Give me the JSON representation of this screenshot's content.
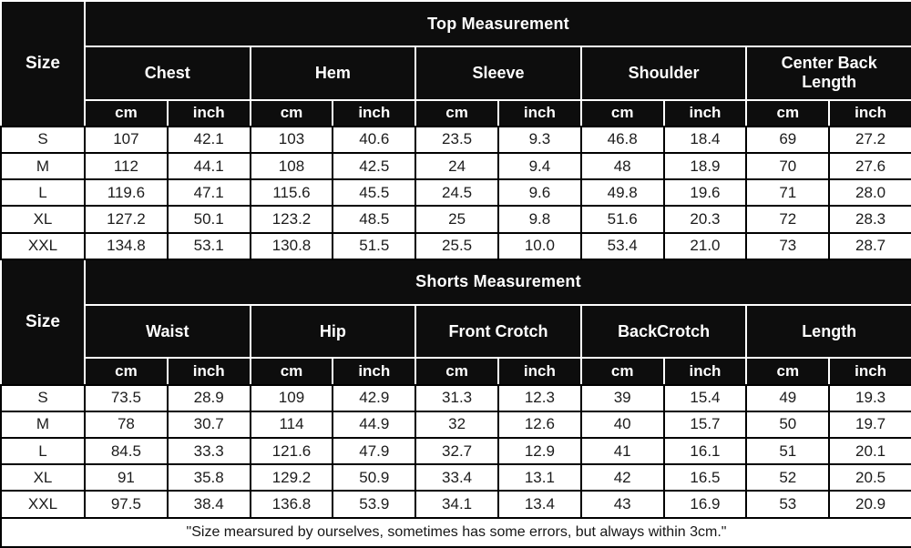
{
  "labels": {
    "size": "Size",
    "cm": "cm",
    "inch": "inch"
  },
  "chart_data": [
    {
      "type": "table",
      "title": "Top Measurement",
      "categories": [
        "Chest",
        "Hem",
        "Sleeve",
        "Shoulder",
        "Center Back Length"
      ],
      "units_per_category": [
        "cm",
        "inch"
      ],
      "row_labels": [
        "S",
        "M",
        "L",
        "XL",
        "XXL"
      ],
      "rows": [
        [
          "107",
          "42.1",
          "103",
          "40.6",
          "23.5",
          "9.3",
          "46.8",
          "18.4",
          "69",
          "27.2"
        ],
        [
          "112",
          "44.1",
          "108",
          "42.5",
          "24",
          "9.4",
          "48",
          "18.9",
          "70",
          "27.6"
        ],
        [
          "119.6",
          "47.1",
          "115.6",
          "45.5",
          "24.5",
          "9.6",
          "49.8",
          "19.6",
          "71",
          "28.0"
        ],
        [
          "127.2",
          "50.1",
          "123.2",
          "48.5",
          "25",
          "9.8",
          "51.6",
          "20.3",
          "72",
          "28.3"
        ],
        [
          "134.8",
          "53.1",
          "130.8",
          "51.5",
          "25.5",
          "10.0",
          "53.4",
          "21.0",
          "73",
          "28.7"
        ]
      ]
    },
    {
      "type": "table",
      "title": "Shorts Measurement",
      "categories": [
        "Waist",
        "Hip",
        "Front Crotch",
        "BackCrotch",
        "Length"
      ],
      "units_per_category": [
        "cm",
        "inch"
      ],
      "row_labels": [
        "S",
        "M",
        "L",
        "XL",
        "XXL"
      ],
      "rows": [
        [
          "73.5",
          "28.9",
          "109",
          "42.9",
          "31.3",
          "12.3",
          "39",
          "15.4",
          "49",
          "19.3"
        ],
        [
          "78",
          "30.7",
          "114",
          "44.9",
          "32",
          "12.6",
          "40",
          "15.7",
          "50",
          "19.7"
        ],
        [
          "84.5",
          "33.3",
          "121.6",
          "47.9",
          "32.7",
          "12.9",
          "41",
          "16.1",
          "51",
          "20.1"
        ],
        [
          "91",
          "35.8",
          "129.2",
          "50.9",
          "33.4",
          "13.1",
          "42",
          "16.5",
          "52",
          "20.5"
        ],
        [
          "97.5",
          "38.4",
          "136.8",
          "53.9",
          "34.1",
          "13.4",
          "43",
          "16.9",
          "53",
          "20.9"
        ]
      ]
    }
  ],
  "footer_note": "\"Size mearsured by ourselves, sometimes has some errors, but always within 3cm.\"",
  "colors": {
    "header_bg": "#0d0d0d",
    "header_text": "#ffffff",
    "body_bg": "#ffffff",
    "grid": "#000000",
    "value_text": "#1c1c1c"
  }
}
